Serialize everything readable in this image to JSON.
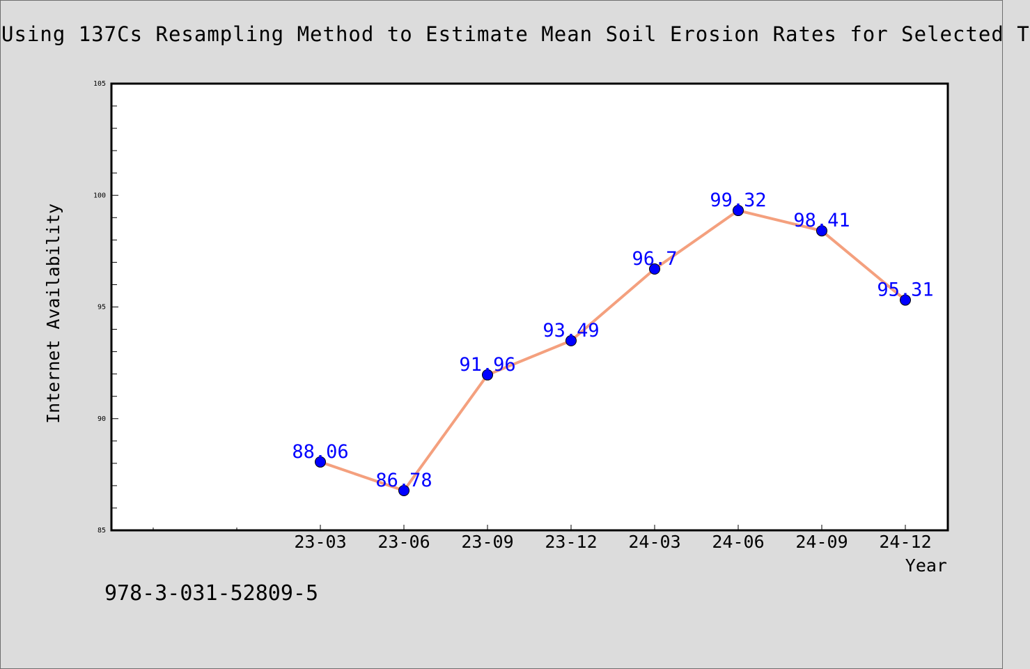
{
  "title": "Using 137Cs Resampling Method to Estimate Mean Soil Erosion Rates for Selected T",
  "footer_text": "978-3-031-52809-5",
  "colors": {
    "background": "#dcdcdc",
    "plot_background": "#ffffff",
    "line": "#f4a07e",
    "marker": "#0000ff",
    "data_label": "#0000ff"
  },
  "chart_data": {
    "type": "line",
    "xlabel": "Year",
    "ylabel": "Internet Availability",
    "categories": [
      "23-03",
      "23-06",
      "23-09",
      "23-12",
      "24-03",
      "24-06",
      "24-09",
      "24-12"
    ],
    "values": [
      88.06,
      86.78,
      91.96,
      93.49,
      96.7,
      99.32,
      98.41,
      95.31
    ],
    "ylim": [
      85,
      105
    ],
    "yticks": [
      85,
      90,
      95,
      100,
      105
    ],
    "grid": false,
    "legend": "none"
  }
}
